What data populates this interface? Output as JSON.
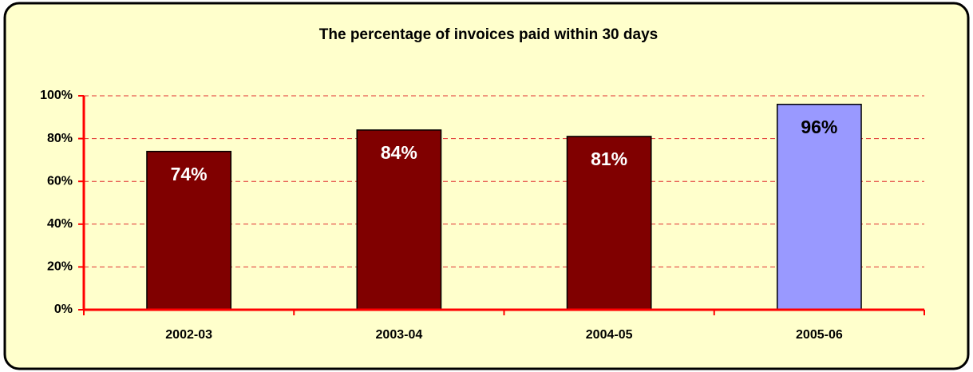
{
  "chart_data": {
    "type": "bar",
    "title": "The percentage of invoices paid within 30 days",
    "categories": [
      "2002-03",
      "2003-04",
      "2004-05",
      "2005-06"
    ],
    "values": [
      74,
      84,
      81,
      96
    ],
    "value_labels": [
      "74%",
      "84%",
      "81%",
      "96%"
    ],
    "colors": [
      "#800000",
      "#800000",
      "#800000",
      "#9999ff"
    ],
    "ylim": [
      0,
      100
    ],
    "yticks": [
      {
        "value": 0,
        "label": "0%"
      },
      {
        "value": 20,
        "label": "20%"
      },
      {
        "value": 40,
        "label": "40%"
      },
      {
        "value": 60,
        "label": "60%"
      },
      {
        "value": 80,
        "label": "80%"
      },
      {
        "value": 100,
        "label": "100%"
      }
    ],
    "grid": true
  }
}
